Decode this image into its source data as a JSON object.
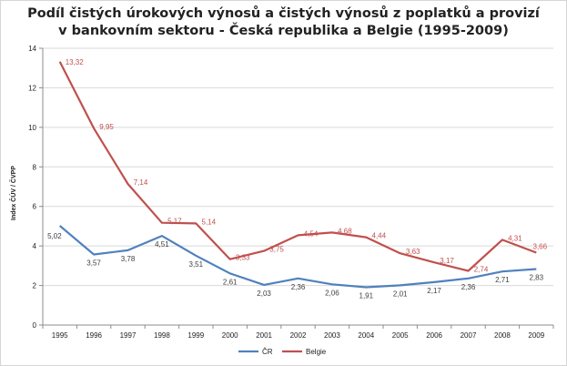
{
  "chart_data": {
    "type": "line",
    "title_line1": "Podíl čistých úrokových výnosů a čistých výnosů z poplatků a provizí",
    "title_line2": "v bankovním sektoru - Česká republika a Belgie (1995-2009)",
    "ylabel": "Index ČÚV / ČVPP",
    "xlabel": "",
    "ylim": [
      0,
      14
    ],
    "yticks": [
      "0",
      "2",
      "4",
      "6",
      "8",
      "10",
      "12",
      "14"
    ],
    "categories": [
      "1995",
      "1996",
      "1997",
      "1998",
      "1999",
      "2000",
      "2001",
      "2002",
      "2003",
      "2004",
      "2005",
      "2006",
      "2007",
      "2008",
      "2009"
    ],
    "grid": true,
    "legend": "bottom",
    "series": [
      {
        "name": "ČR",
        "color": "#4f81bd",
        "values": [
          5.02,
          3.57,
          3.78,
          4.51,
          3.51,
          2.61,
          2.03,
          2.36,
          2.06,
          1.91,
          2.01,
          2.17,
          2.36,
          2.71,
          2.83
        ],
        "labels": [
          "5,02",
          "3,57",
          "3,78",
          "4,51",
          "3,51",
          "2,61",
          "2,03",
          "2,36",
          "2,06",
          "1,91",
          "2,01",
          "2,17",
          "2,36",
          "2,71",
          "2,83"
        ]
      },
      {
        "name": "Belgie",
        "color": "#c0504d",
        "values": [
          13.32,
          9.95,
          7.14,
          5.17,
          5.14,
          3.33,
          3.75,
          4.54,
          4.68,
          4.44,
          3.63,
          3.17,
          2.74,
          4.31,
          3.66
        ],
        "labels": [
          "13,32",
          "9,95",
          "7,14",
          "5,17",
          "5,14",
          "3,33",
          "3,75",
          "4,54",
          "4,68",
          "4,44",
          "3,63",
          "3,17",
          "2,74",
          "4,31",
          "3,66"
        ]
      }
    ]
  }
}
